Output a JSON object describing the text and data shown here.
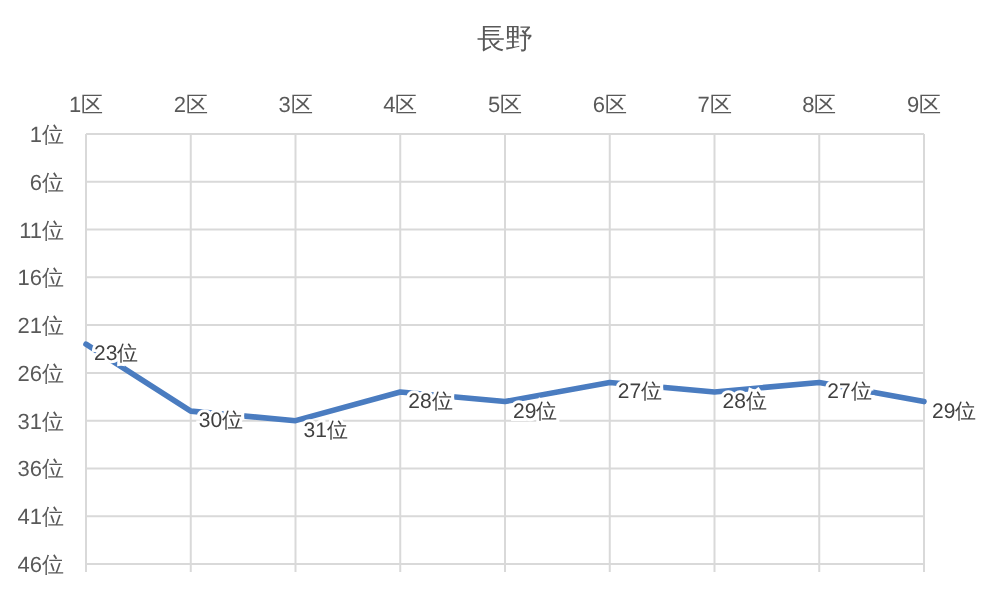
{
  "chart_data": {
    "type": "line",
    "title": "長野",
    "categories": [
      "1区",
      "2区",
      "3区",
      "4区",
      "5区",
      "6区",
      "7区",
      "8区",
      "9区"
    ],
    "series": [
      {
        "color": "#4a7cc0",
        "values": [
          23,
          30,
          31,
          28,
          29,
          27,
          28,
          27,
          29
        ],
        "value_labels": [
          "23位",
          "30位",
          "31位",
          "28位",
          "29位",
          "27位",
          "28位",
          "27位",
          "29位"
        ]
      }
    ],
    "ylim": [
      46,
      1
    ],
    "yticks": [
      {
        "value": 1,
        "label": "1位"
      },
      {
        "value": 6,
        "label": "6位"
      },
      {
        "value": 11,
        "label": "11位"
      },
      {
        "value": 16,
        "label": "16位"
      },
      {
        "value": 21,
        "label": "21位"
      },
      {
        "value": 26,
        "label": "26位"
      },
      {
        "value": 31,
        "label": "31位"
      },
      {
        "value": 36,
        "label": "36位"
      },
      {
        "value": 41,
        "label": "41位"
      },
      {
        "value": 46,
        "label": "46位"
      }
    ],
    "grid": true,
    "marker": "none",
    "line_style": "solid"
  }
}
